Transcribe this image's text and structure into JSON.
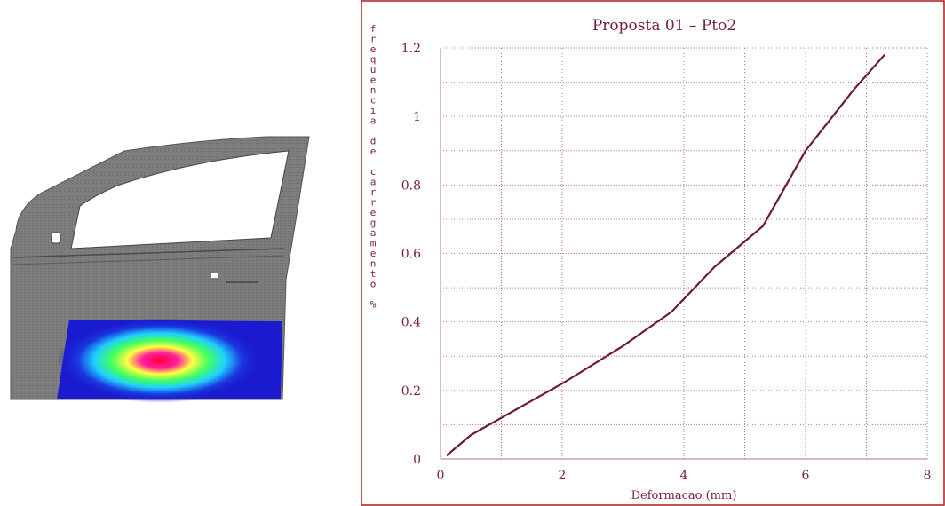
{
  "colors": {
    "axis_text": "#7a1d3a",
    "line": "#6e1a32",
    "grid": "#c07080",
    "frame": "#b01818",
    "door_body": "#7d7d7d",
    "door_shade": "#5e5e5e",
    "heat_low": "#1a1ad0"
  },
  "left_image": {
    "icon": "car-door-deformation-heatmap-icon"
  },
  "chart_data": {
    "type": "line",
    "title": "Proposta 01 – Pto2",
    "xlabel": "Deformacao (mm)",
    "ylabel": "frequencia de carregamento %",
    "xlim": [
      0,
      8
    ],
    "ylim": [
      0,
      1.2
    ],
    "x_ticks": [
      "0",
      "2",
      "4",
      "6",
      "8"
    ],
    "y_ticks": [
      "0",
      "0.2",
      "0.4",
      "0.6",
      "0.8",
      "1",
      "1.2"
    ],
    "grid": true,
    "x": [
      0.1,
      0.5,
      1.0,
      2.0,
      3.0,
      3.8,
      4.5,
      5.3,
      6.0,
      6.8,
      7.3
    ],
    "y": [
      0.01,
      0.07,
      0.12,
      0.22,
      0.33,
      0.43,
      0.56,
      0.68,
      0.9,
      1.08,
      1.18
    ]
  }
}
